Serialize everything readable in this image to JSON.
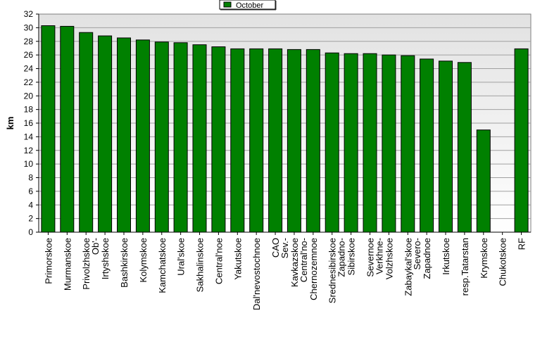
{
  "chart_data": {
    "type": "bar",
    "ylabel": "km",
    "ylim": [
      0,
      32
    ],
    "ytick_step": 2,
    "grid": true,
    "legend_position": "top-center",
    "series": [
      {
        "name": "October",
        "color": "#008000"
      }
    ],
    "categories": [
      "Primorskoe",
      "Murmanskoe",
      "Privolzhskoe",
      "Ob'-\nIrtyshskoe",
      "Bashkirskoe",
      "Kolymskoe",
      "Kamchatskoe",
      "Ural'skoe",
      "Sakhalinskoe",
      "Central'noe",
      "Yakutskoe",
      "Dal'nevostochnoe",
      "CAO",
      "Sev.-\nKavkazskoe",
      "Central'no-\nChernozemnoe",
      "Srednesibirskoe",
      "Zapadno-\nSibirskoe",
      "Severnoe",
      "Verkhne-\nVolzhskoe",
      "Zabaykal'skoe",
      "Severo-\nZapadnoe",
      "Irkutskoe",
      "resp.Tatarstan",
      "Krymskoe",
      "Chukotskoe",
      "RF"
    ],
    "values": [
      30.3,
      30.2,
      29.3,
      28.8,
      28.5,
      28.2,
      27.9,
      27.8,
      27.5,
      27.2,
      26.9,
      26.9,
      26.9,
      26.8,
      26.8,
      26.3,
      26.2,
      26.2,
      26.0,
      25.9,
      25.4,
      25.1,
      24.9,
      15.0,
      null,
      26.9
    ]
  }
}
